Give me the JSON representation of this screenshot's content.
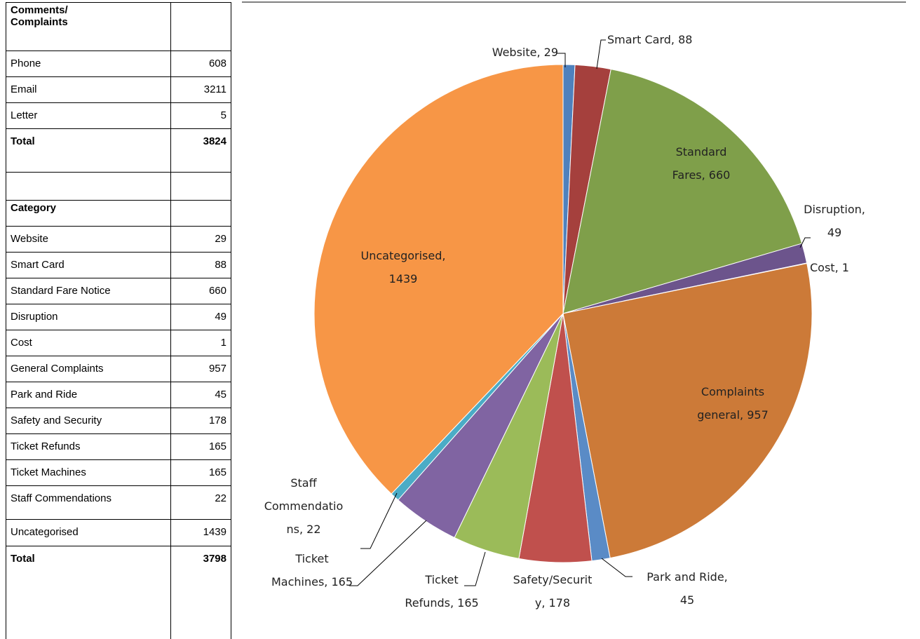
{
  "contact_table": {
    "header": "Comments/\nComplaints",
    "rows": [
      [
        "Phone",
        608
      ],
      [
        "Email",
        3211
      ],
      [
        "Letter",
        5
      ]
    ],
    "total": [
      "Total",
      3824
    ]
  },
  "category_table": {
    "header": "Category",
    "rows": [
      [
        "Website",
        29
      ],
      [
        "Smart Card",
        88
      ],
      [
        "Standard Fare Notice",
        660
      ],
      [
        "Disruption",
        49
      ],
      [
        "Cost",
        1
      ],
      [
        "General Complaints",
        957
      ],
      [
        "Park and Ride",
        45
      ],
      [
        "Safety and Security",
        178
      ],
      [
        "Ticket Refunds",
        165
      ],
      [
        "Ticket Machines",
        165
      ],
      [
        "Staff Commendations",
        22
      ],
      [
        "Uncategorised",
        1439
      ]
    ],
    "total": [
      "Total",
      3798
    ]
  },
  "chart_data": {
    "type": "pie",
    "values": [
      29,
      88,
      660,
      49,
      1,
      957,
      45,
      178,
      165,
      165,
      22,
      1439
    ],
    "value_labels": [
      "Website, 29",
      "Smart Card, 88",
      "Standard\nFares, 660",
      "Disruption,\n49",
      "Cost, 1",
      "Complaints\ngeneral, 957",
      "Park and Ride,\n45",
      "Safety/Securit\ny, 178",
      "Ticket\nRefunds, 165",
      "Ticket\nMachines, 165",
      "Staff\nCommendatio\nns, 22",
      "Uncategorised,\n1439"
    ],
    "colors": [
      "#4f81bd",
      "#a5403d",
      "#7f9f4a",
      "#6c548c",
      "#4bacc6",
      "#cc7a38",
      "#5a8bc6",
      "#c0504d",
      "#9bbb59",
      "#8064a2",
      "#4bacc6",
      "#f79646"
    ]
  }
}
